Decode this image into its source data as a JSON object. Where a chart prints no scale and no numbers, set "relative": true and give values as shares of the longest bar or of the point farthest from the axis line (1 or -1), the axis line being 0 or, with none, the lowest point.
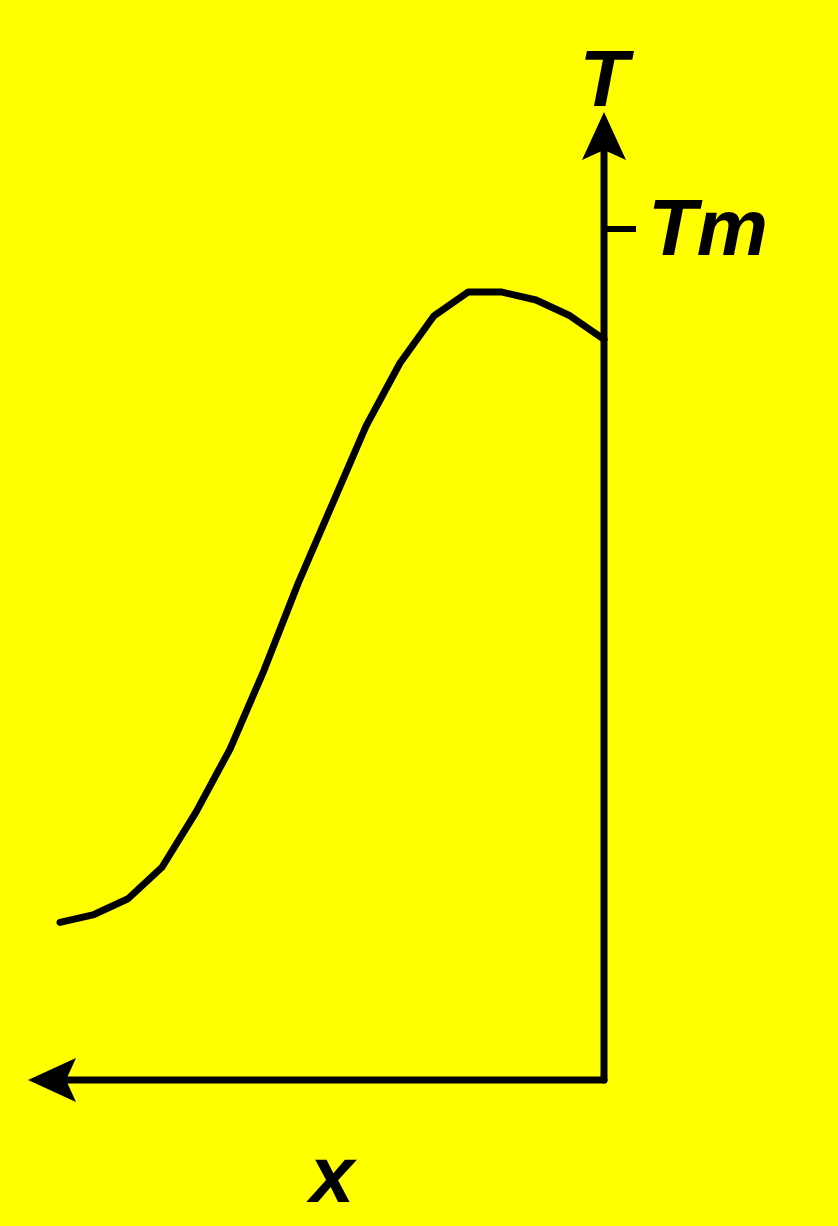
{
  "chart_data": {
    "type": "line",
    "relative": true,
    "xlabel": "x",
    "ylabel": "T",
    "categories": [
      null,
      null,
      null,
      null,
      null,
      null,
      null,
      null,
      null,
      null,
      null,
      null,
      null,
      null,
      null,
      null,
      null
    ],
    "series": [
      {
        "color": "#000000",
        "values": [
          0.2,
          0.21,
          0.23,
          0.27,
          0.34,
          0.42,
          0.52,
          0.63,
          0.73,
          0.83,
          0.91,
          0.97,
          1.0,
          1.0,
          0.99,
          0.97,
          0.94
        ]
      }
    ],
    "ref_lines": [
      {
        "axis": "y",
        "value": 1.08,
        "label": "Tm"
      }
    ],
    "grid": false,
    "marker": "none",
    "line_style": "solid"
  }
}
